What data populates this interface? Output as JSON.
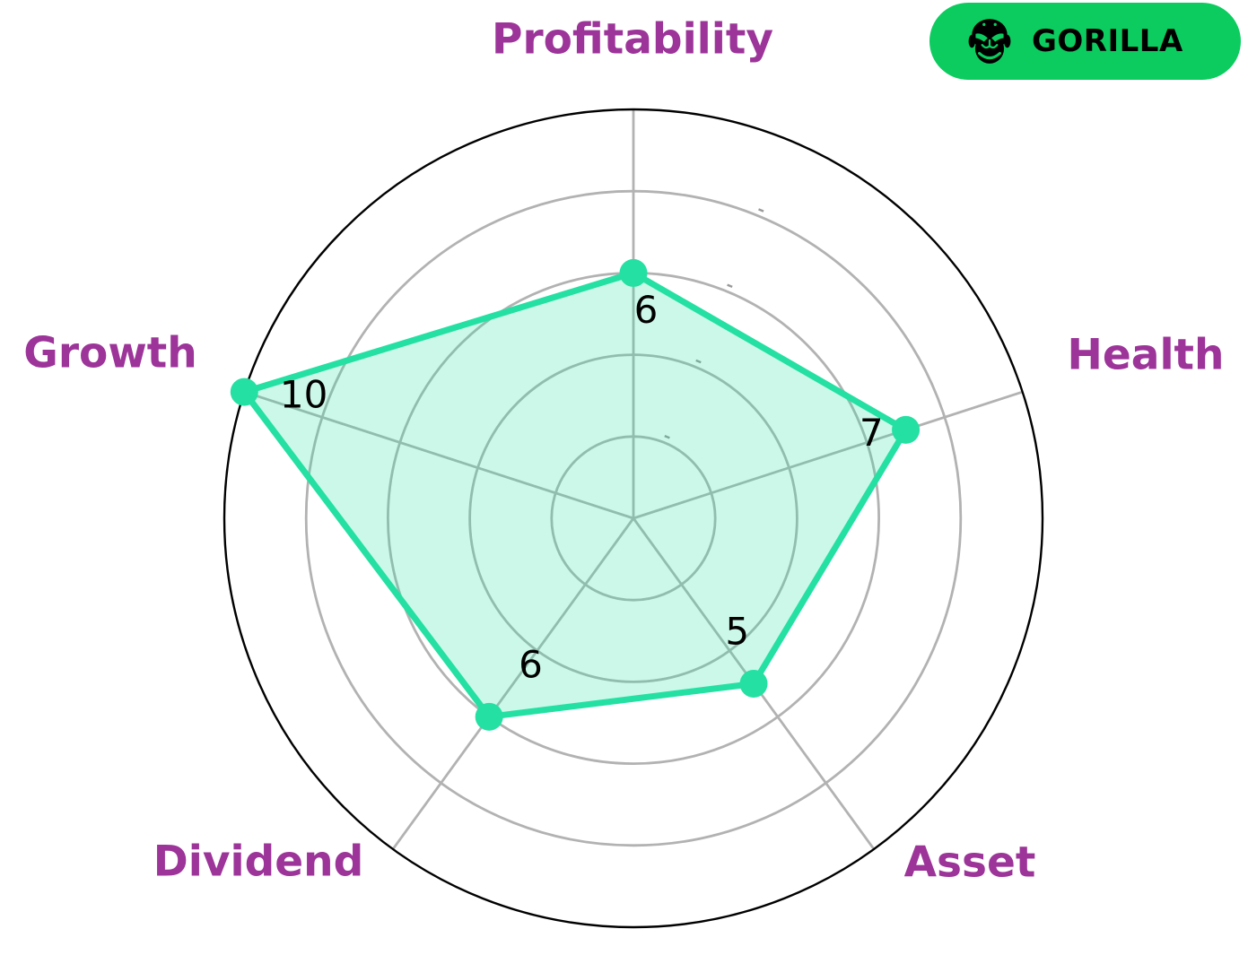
{
  "badge": {
    "label": "GORILLA",
    "icon": "gorilla-icon",
    "bg_color": "#0CCC5F",
    "text_color": "#000000"
  },
  "chart_data": {
    "type": "radar",
    "title": "",
    "categories": [
      "Profitability",
      "Health",
      "Asset",
      "Dividend",
      "Growth"
    ],
    "values": [
      6,
      7,
      5,
      6,
      10
    ],
    "rmax": 10,
    "ring_values": [
      2,
      4,
      6,
      8
    ],
    "start_angle_deg": 90,
    "direction": "clockwise",
    "grid": true,
    "legend_position": "none",
    "line_color": "#24E0A2",
    "fill_color": "rgba(36, 224, 162, 0.24)",
    "grid_color": "#B2B2B2",
    "outline_color": "#000000",
    "axis_label_color": "#9C3499",
    "value_label_color": "#000000"
  }
}
